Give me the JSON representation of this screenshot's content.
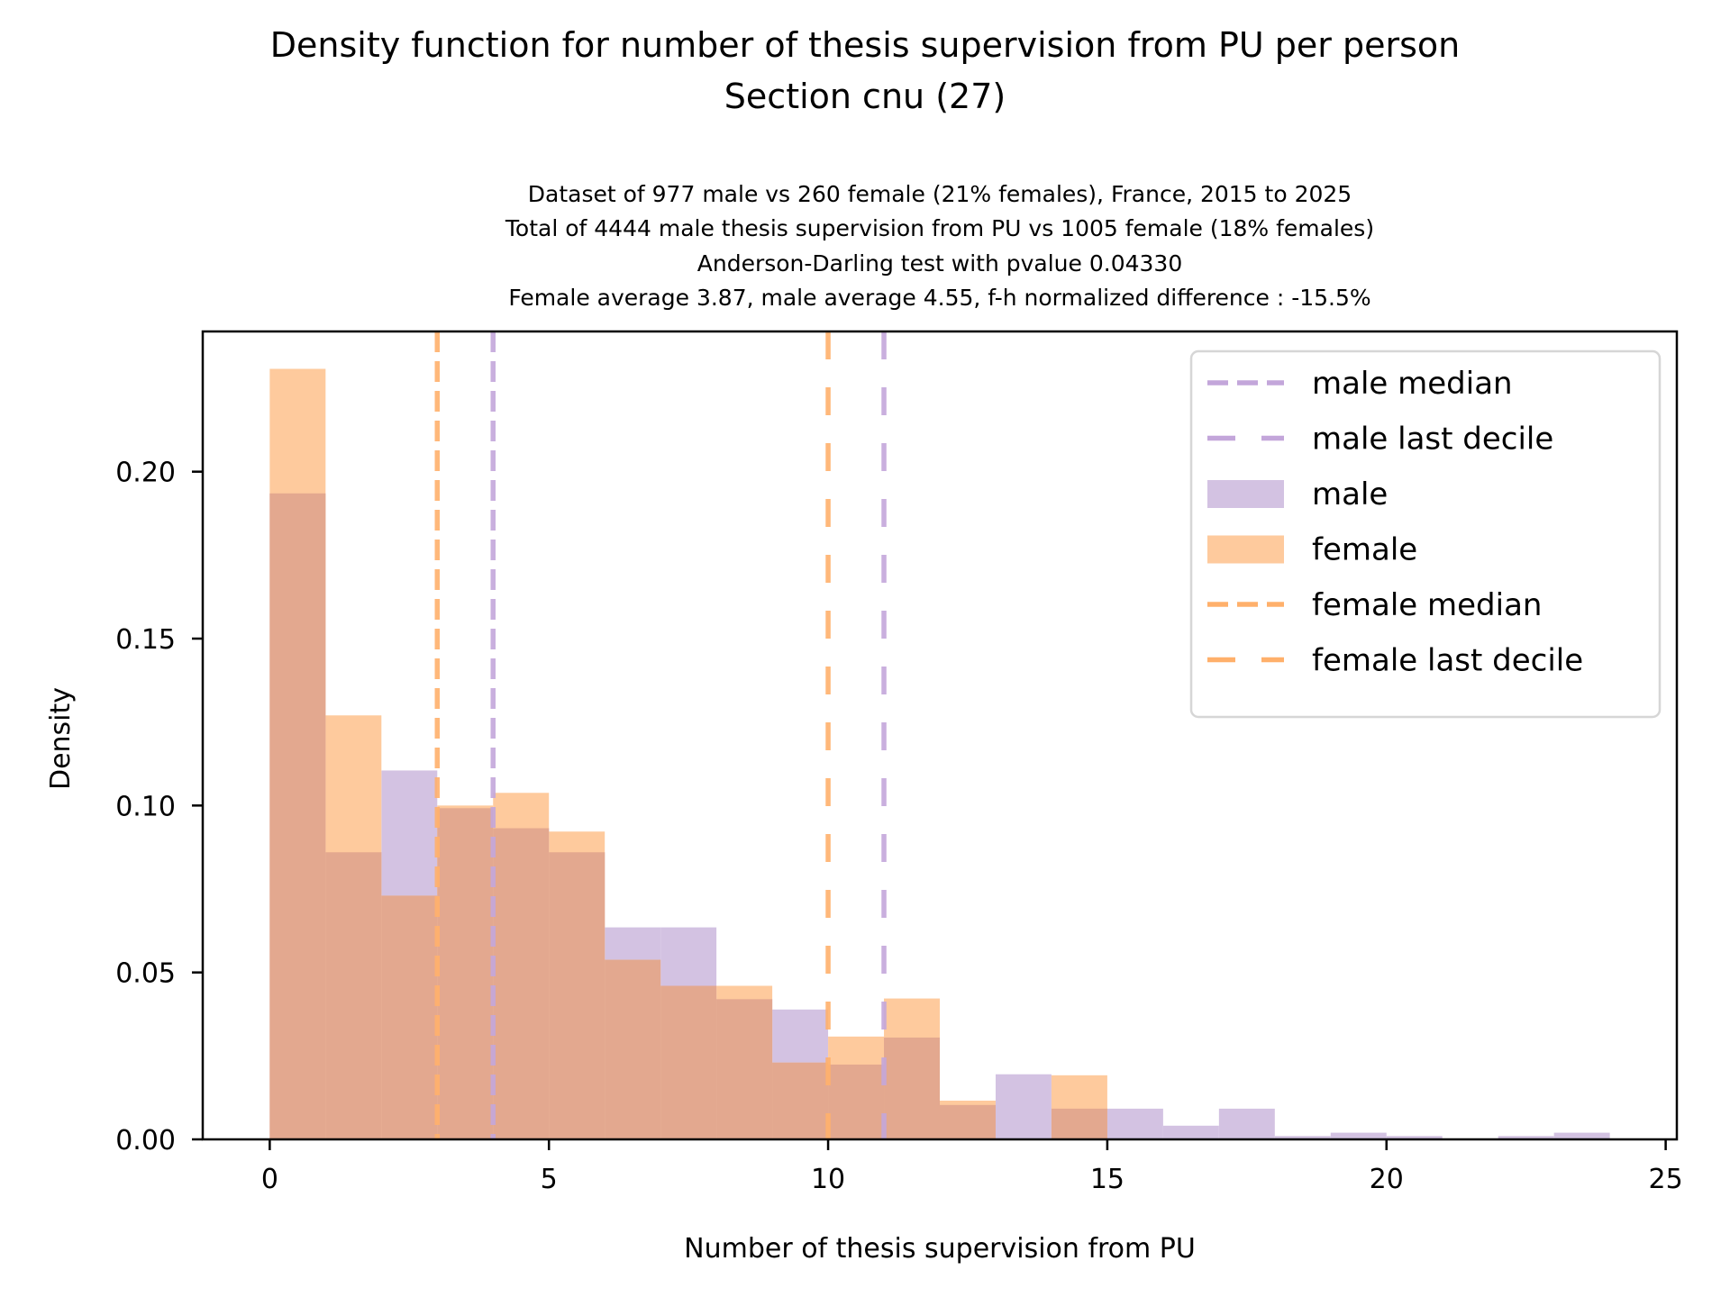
{
  "chart_data": {
    "type": "bar",
    "subtype": "overlapping-histogram",
    "title": "Density function for number of thesis supervision from PU per person",
    "title_line2": "Section cnu (27)",
    "subtitle_lines": [
      "Dataset of 977 male vs 260 female (21% females), France, 2015 to 2025",
      "Total of 4444 male thesis supervision from PU vs 1005 female (18% females)",
      "Anderson-Darling test with pvalue 0.04330",
      "Female average 3.87, male average 4.55, f-h normalized difference : -15.5%"
    ],
    "xlabel": "Number of thesis supervision from PU",
    "ylabel": "Density",
    "xlim": [
      -1.2,
      25.2
    ],
    "ylim": [
      0,
      0.242
    ],
    "x_ticks": [
      0,
      5,
      10,
      15,
      20,
      25
    ],
    "x_tick_labels": [
      "0",
      "5",
      "10",
      "15",
      "20",
      "25"
    ],
    "y_ticks": [
      0.0,
      0.05,
      0.1,
      0.15,
      0.2
    ],
    "y_tick_labels": [
      "0.00",
      "0.05",
      "0.10",
      "0.15",
      "0.20"
    ],
    "grid": false,
    "bin_edges": [
      0,
      1,
      2,
      3,
      4,
      5,
      6,
      7,
      8,
      9,
      10,
      11,
      12,
      13,
      14,
      15,
      16,
      17,
      18,
      19,
      20,
      21,
      22,
      23,
      24
    ],
    "series": [
      {
        "name": "male",
        "color": "#D3C2E2",
        "values": [
          0.1935,
          0.086,
          0.1105,
          0.0992,
          0.0932,
          0.086,
          0.0635,
          0.0635,
          0.042,
          0.0389,
          0.0224,
          0.0305,
          0.0103,
          0.0195,
          0.0092,
          0.0092,
          0.0041,
          0.0092,
          0.001,
          0.002,
          0.001,
          0.0,
          0.001,
          0.002
        ]
      },
      {
        "name": "female",
        "color": "#FECA9D",
        "values": [
          0.2308,
          0.127,
          0.073,
          0.1,
          0.1038,
          0.0922,
          0.0538,
          0.046,
          0.046,
          0.023,
          0.0308,
          0.0422,
          0.0116,
          0.0,
          0.0192,
          0.0,
          0.0,
          0.0,
          0.0,
          0.0,
          0.0,
          0.0,
          0.0,
          0.0
        ]
      }
    ],
    "overlap_color": "#E3A88F",
    "vlines": [
      {
        "name": "male median",
        "x": 4,
        "color": "#C3A6DA",
        "style": "dashed"
      },
      {
        "name": "male last decile",
        "x": 11,
        "color": "#C3A6DA",
        "style": "long-dashed"
      },
      {
        "name": "female median",
        "x": 3,
        "color": "#FFB06B",
        "style": "dashed"
      },
      {
        "name": "female last decile",
        "x": 10,
        "color": "#FFB06B",
        "style": "long-dashed"
      }
    ],
    "legend": {
      "position": "top-right",
      "entries": [
        {
          "label": "male median",
          "kind": "dashed",
          "color": "#C3A6DA"
        },
        {
          "label": "male last decile",
          "kind": "long-dashed",
          "color": "#C3A6DA"
        },
        {
          "label": "male",
          "kind": "patch",
          "color": "#D3C2E2"
        },
        {
          "label": "female",
          "kind": "patch",
          "color": "#FECA9D"
        },
        {
          "label": "female median",
          "kind": "dashed",
          "color": "#FFB06B"
        },
        {
          "label": "female last decile",
          "kind": "long-dashed",
          "color": "#FFB06B"
        }
      ]
    }
  }
}
